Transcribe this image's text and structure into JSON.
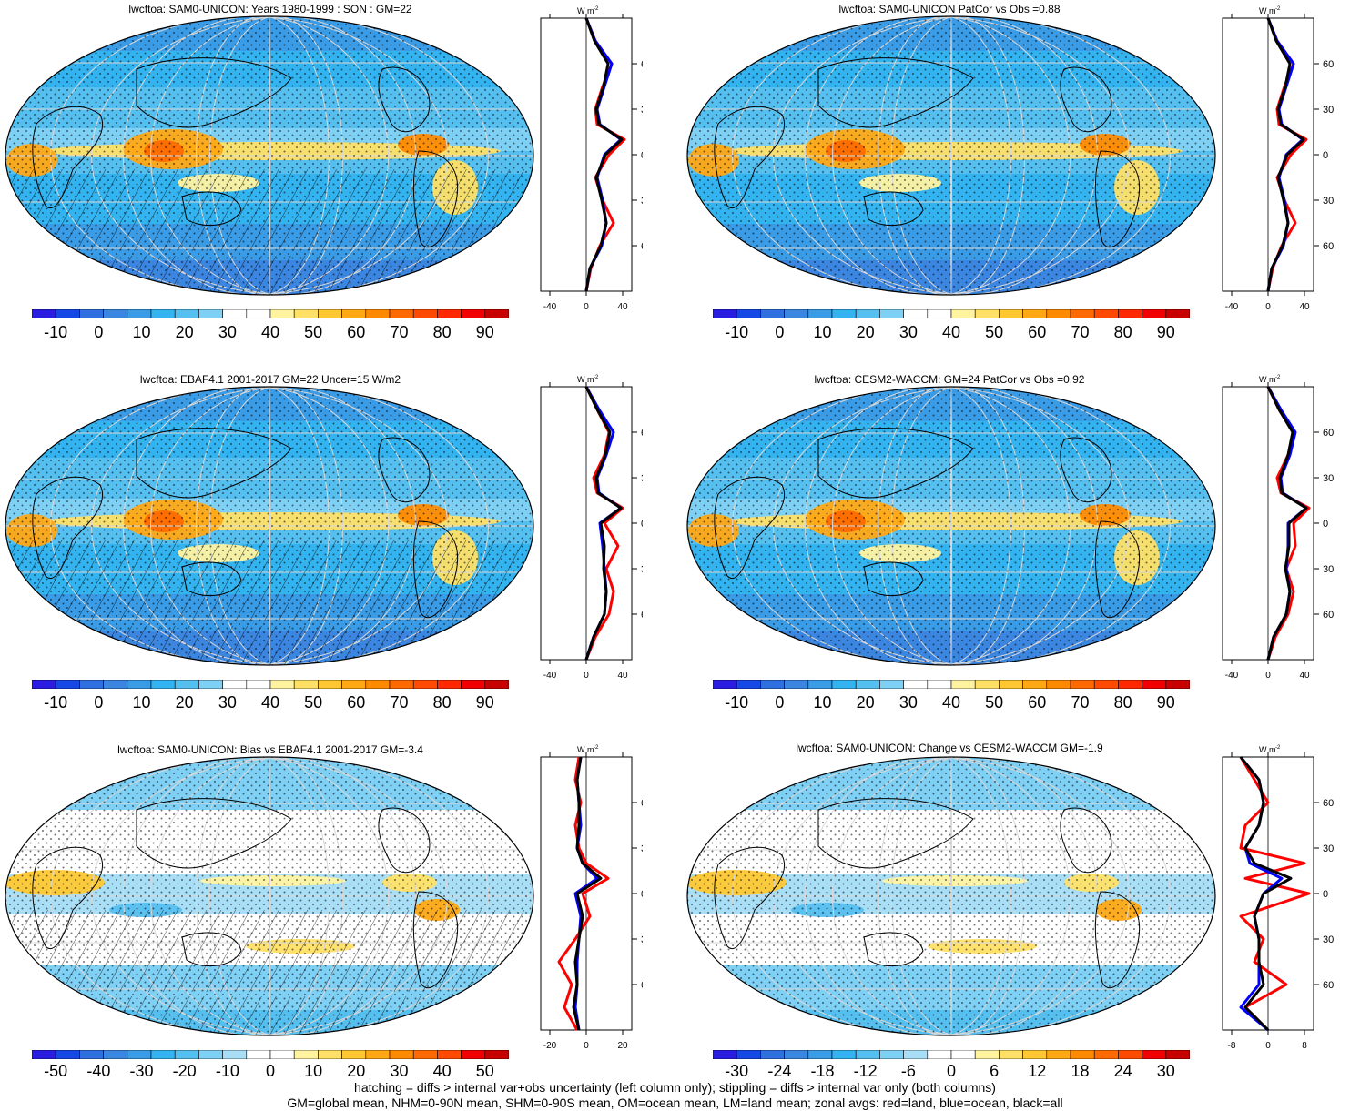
{
  "chart_data": {
    "type": "map-panels",
    "zonal_units": "W m",
    "zonal_units_sup": "-2",
    "lat_ticks": [
      "60N",
      "30N",
      "0",
      "30S",
      "60S"
    ],
    "panels": [
      {
        "id": "p1",
        "title": "lwcftoa: SAM0-UNICON: Years 1980-1999 : SON : GM=22",
        "kind": "abs",
        "hatching": true,
        "stippling": true,
        "colorbar_labels": [
          "-10",
          "0",
          "10",
          "20",
          "30",
          "40",
          "50",
          "60",
          "70",
          "80",
          "90"
        ],
        "zonal_xticks": [
          "-40",
          "0",
          "40"
        ],
        "zonal_xrange": [
          -50,
          50
        ],
        "zonal": {
          "lat": [
            -90,
            -75,
            -60,
            -45,
            -30,
            -15,
            0,
            10,
            20,
            30,
            45,
            60,
            75,
            90
          ],
          "land": [
            0,
            5,
            15,
            30,
            18,
            10,
            25,
            42,
            12,
            10,
            18,
            28,
            10,
            0
          ],
          "ocean": [
            0,
            4,
            17,
            22,
            18,
            12,
            20,
            38,
            15,
            12,
            20,
            28,
            10,
            0
          ],
          "all": [
            0,
            4,
            16,
            22,
            17,
            11,
            21,
            39,
            14,
            11,
            19,
            24,
            9,
            0
          ]
        }
      },
      {
        "id": "p2",
        "title": "lwcftoa: SAM0-UNICON PatCor vs Obs =0.88",
        "kind": "abs",
        "hatching": false,
        "stippling": true,
        "colorbar_labels": [
          "-10",
          "0",
          "10",
          "20",
          "30",
          "40",
          "50",
          "60",
          "70",
          "80",
          "90"
        ],
        "zonal_xticks": [
          "-40",
          "0",
          "40"
        ],
        "zonal_xrange": [
          -50,
          50
        ],
        "zonal": {
          "lat": [
            -90,
            -75,
            -60,
            -45,
            -30,
            -15,
            0,
            10,
            20,
            30,
            45,
            60,
            75,
            90
          ],
          "land": [
            0,
            5,
            15,
            30,
            18,
            10,
            25,
            42,
            12,
            10,
            18,
            28,
            10,
            0
          ],
          "ocean": [
            0,
            4,
            17,
            22,
            18,
            12,
            20,
            38,
            15,
            12,
            20,
            28,
            10,
            0
          ],
          "all": [
            0,
            4,
            16,
            22,
            17,
            11,
            21,
            39,
            14,
            11,
            19,
            24,
            9,
            0
          ]
        }
      },
      {
        "id": "p3",
        "title": "lwcftoa: EBAF4.1 2001-2017 GM=22 Uncer=15 W/m2",
        "kind": "abs",
        "hatching": true,
        "stippling": true,
        "colorbar_labels": [
          "-10",
          "0",
          "10",
          "20",
          "30",
          "40",
          "50",
          "60",
          "70",
          "80",
          "90"
        ],
        "zonal_xticks": [
          "-40",
          "0",
          "40"
        ],
        "zonal_xrange": [
          -50,
          50
        ],
        "zonal": {
          "lat": [
            -90,
            -75,
            -60,
            -45,
            -30,
            -15,
            0,
            10,
            20,
            30,
            45,
            60,
            75,
            90
          ],
          "land": [
            0,
            10,
            25,
            30,
            22,
            35,
            20,
            40,
            12,
            8,
            20,
            25,
            12,
            0
          ],
          "ocean": [
            0,
            8,
            20,
            22,
            20,
            18,
            15,
            38,
            14,
            12,
            22,
            30,
            14,
            0
          ],
          "all": [
            0,
            8,
            20,
            22,
            19,
            20,
            16,
            38,
            13,
            11,
            21,
            26,
            12,
            0
          ]
        }
      },
      {
        "id": "p4",
        "title": "lwcftoa: CESM2-WACCM: GM=24 PatCor vs Obs =0.92",
        "kind": "abs",
        "hatching": false,
        "stippling": true,
        "colorbar_labels": [
          "-10",
          "0",
          "10",
          "20",
          "30",
          "40",
          "50",
          "60",
          "70",
          "80",
          "90"
        ],
        "zonal_xticks": [
          "-40",
          "0",
          "40"
        ],
        "zonal_xrange": [
          -50,
          50
        ],
        "zonal": {
          "lat": [
            -90,
            -75,
            -60,
            -45,
            -30,
            -15,
            0,
            10,
            20,
            30,
            45,
            60,
            75,
            90
          ],
          "land": [
            0,
            8,
            22,
            28,
            20,
            30,
            28,
            45,
            14,
            10,
            22,
            28,
            12,
            0
          ],
          "ocean": [
            0,
            6,
            20,
            24,
            20,
            22,
            22,
            42,
            16,
            14,
            24,
            30,
            14,
            0
          ],
          "all": [
            0,
            6,
            20,
            24,
            19,
            23,
            23,
            42,
            15,
            13,
            22,
            27,
            12,
            0
          ]
        }
      },
      {
        "id": "p5",
        "title": "lwcftoa: SAM0-UNICON: Bias vs EBAF4.1 2001-2017  GM=-3.4",
        "kind": "diff",
        "hatching": true,
        "stippling": true,
        "colorbar_labels": [
          "-50",
          "-40",
          "-30",
          "-20",
          "-10",
          "0",
          "10",
          "20",
          "30",
          "40",
          "50"
        ],
        "zonal_xticks": [
          "-20",
          "0",
          "20"
        ],
        "zonal_xrange": [
          -25,
          25
        ],
        "zonal": {
          "lat": [
            -90,
            -75,
            -60,
            -45,
            -30,
            -15,
            0,
            10,
            20,
            30,
            45,
            60,
            75,
            90
          ],
          "land": [
            -5,
            -12,
            -8,
            -15,
            -6,
            2,
            -2,
            12,
            0,
            -4,
            -6,
            -3,
            -6,
            -4
          ],
          "ocean": [
            -4,
            -6,
            -5,
            -5,
            -4,
            -3,
            -6,
            6,
            -2,
            -5,
            -3,
            -4,
            -5,
            -3
          ],
          "all": [
            -4,
            -7,
            -5,
            -6,
            -4,
            -2,
            -5,
            8,
            -2,
            -5,
            -4,
            -4,
            -5,
            -3
          ]
        }
      },
      {
        "id": "p6",
        "title": "lwcftoa: SAM0-UNICON: Change vs CESM2-WACCM GM=-1.9",
        "kind": "diff",
        "hatching": false,
        "stippling": true,
        "colorbar_labels": [
          "-30",
          "-24",
          "-18",
          "-12",
          "-6",
          "0",
          "6",
          "12",
          "18",
          "24",
          "30"
        ],
        "zonal_xticks": [
          "-8",
          "0",
          "8"
        ],
        "zonal_xrange": [
          -10,
          10
        ],
        "zonal": {
          "lat": [
            -90,
            -75,
            -60,
            -45,
            -30,
            -15,
            0,
            10,
            20,
            30,
            45,
            60,
            75,
            90
          ],
          "land": [
            0,
            -5,
            4,
            -3,
            -1,
            -6,
            9,
            -5,
            8,
            -6,
            -5,
            0,
            -3,
            -6
          ],
          "ocean": [
            0,
            -6,
            -2,
            -2,
            -2,
            -3,
            -1,
            3,
            -4,
            -5,
            -2,
            -1,
            -2,
            -6
          ],
          "all": [
            0,
            -5,
            -1,
            -2,
            -2,
            -3,
            -1,
            5,
            -3,
            -5,
            -2,
            -1,
            -2,
            -6
          ]
        }
      }
    ]
  },
  "colors": {
    "land": "#ff0000",
    "ocean": "#0000ff",
    "all": "#000000",
    "abs_palette": [
      "#2a1ce0",
      "#1648e6",
      "#2f6fe0",
      "#3b86e0",
      "#3a9be6",
      "#33b3ef",
      "#55bff0",
      "#7fd0f5",
      "#ffffff",
      "#ffffff",
      "#fff3a0",
      "#ffe066",
      "#ffc832",
      "#ffa814",
      "#ff8a00",
      "#ff6a00",
      "#ff4a00",
      "#ff2800",
      "#f00000",
      "#c80000"
    ],
    "diff_palette": [
      "#2a1ce0",
      "#1648e6",
      "#2f6fe0",
      "#3b86e0",
      "#3a9be6",
      "#33b3ef",
      "#55bff0",
      "#7fd0f5",
      "#a8dff7",
      "#ffffff",
      "#ffffff",
      "#fff3a0",
      "#ffe066",
      "#ffc832",
      "#ffa814",
      "#ff8a00",
      "#ff6a00",
      "#ff4a00",
      "#f00000",
      "#c80000"
    ]
  },
  "footnote": {
    "line1": "hatching = diffs > internal var+obs uncertainty (left column only); stippling = diffs > internal var only (both columns)",
    "line2": "GM=global mean, NHM=0-90N mean, SHM=0-90S mean, OM=ocean mean, LM=land mean; zonal avgs: red=land, blue=ocean, black=all"
  }
}
